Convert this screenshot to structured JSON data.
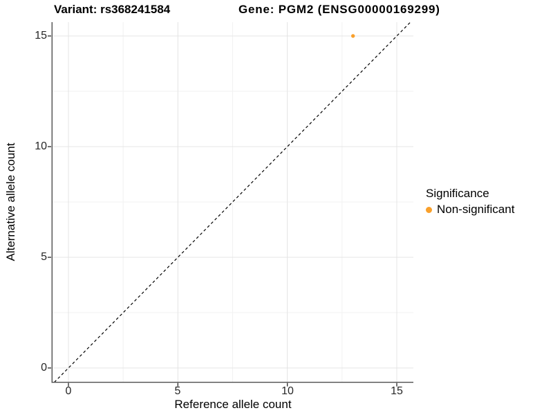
{
  "titles": {
    "variant": "Variant: rs368241584",
    "gene": "Gene: PGM2 (ENSG00000169299)"
  },
  "chart_data": {
    "type": "scatter",
    "xlabel": "Reference allele count",
    "ylabel": "Alternative allele count",
    "xlim": [
      -0.75,
      15.75
    ],
    "ylim": [
      -0.65,
      15.65
    ],
    "x_ticks": [
      0,
      5,
      10,
      15
    ],
    "y_ticks": [
      0,
      5,
      10,
      15
    ],
    "x_tick_labels": [
      "0",
      "5",
      "10",
      "15"
    ],
    "y_tick_labels": [
      "0",
      "5",
      "10",
      "15"
    ],
    "minor_ticks": [
      2.5,
      7.5,
      12.5
    ],
    "grid": true,
    "identity_line": {
      "equation": "y = x",
      "style": "dashed",
      "color": "#000000"
    },
    "series": [
      {
        "name": "Non-significant",
        "color": "#F9A02B",
        "points": [
          {
            "x": 13,
            "y": 15
          }
        ]
      }
    ],
    "legend": {
      "title": "Significance",
      "position": "right",
      "entries": [
        {
          "label": "Non-significant",
          "color": "#F9A02B"
        }
      ]
    }
  },
  "colors": {
    "background": "#FFFFFF",
    "grid_major": "#E4E4E4",
    "grid_minor": "#F2F2F2",
    "axis_line": "#4D4D4D",
    "tick_mark": "#333333",
    "point_orange": "#F9A02B"
  }
}
